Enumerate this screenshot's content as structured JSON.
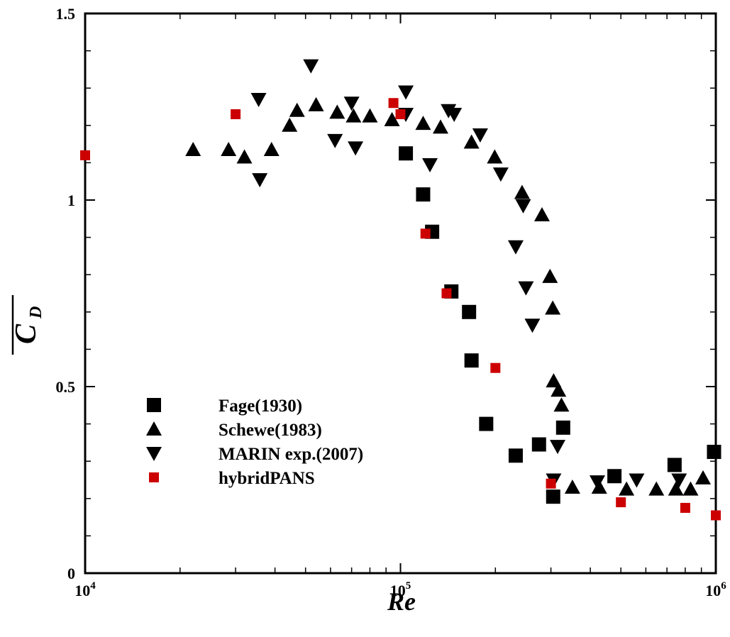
{
  "chart_data": {
    "type": "scatter",
    "title": "",
    "xlabel": "Re",
    "ylabel": "C_D (mean)",
    "ylabel_symbol": "C",
    "ylabel_subscript": "D",
    "xscale": "log",
    "xlim": [
      10000,
      1000000
    ],
    "ylim": [
      0,
      1.5
    ],
    "grid": false,
    "legend_position": "lower-left",
    "x_ticks": [
      {
        "value": 10000,
        "base": "10",
        "exp": "4"
      },
      {
        "value": 100000,
        "base": "10",
        "exp": "5"
      },
      {
        "value": 1000000,
        "base": "10",
        "exp": "6"
      }
    ],
    "y_ticks": [
      {
        "value": 0,
        "label": "0"
      },
      {
        "value": 0.5,
        "label": "0.5"
      },
      {
        "value": 1,
        "label": "1"
      },
      {
        "value": 1.5,
        "label": "1.5"
      }
    ],
    "series": [
      {
        "name": "Fage(1930)",
        "marker": "square",
        "color": "#000000",
        "points": [
          [
            104000,
            1.125
          ],
          [
            118000,
            1.015
          ],
          [
            126000,
            0.915
          ],
          [
            145000,
            0.755
          ],
          [
            165000,
            0.7
          ],
          [
            168000,
            0.57
          ],
          [
            187000,
            0.4
          ],
          [
            232000,
            0.315
          ],
          [
            275000,
            0.345
          ],
          [
            305000,
            0.205
          ],
          [
            328000,
            0.39
          ],
          [
            477000,
            0.26
          ],
          [
            740000,
            0.29
          ],
          [
            987000,
            0.325
          ]
        ]
      },
      {
        "name": "Schewe(1983)",
        "marker": "triangle-up",
        "color": "#000000",
        "points": [
          [
            22000,
            1.135
          ],
          [
            28500,
            1.135
          ],
          [
            32000,
            1.115
          ],
          [
            39000,
            1.135
          ],
          [
            44500,
            1.2
          ],
          [
            47000,
            1.24
          ],
          [
            54000,
            1.255
          ],
          [
            63000,
            1.235
          ],
          [
            71000,
            1.225
          ],
          [
            80000,
            1.225
          ],
          [
            94000,
            1.215
          ],
          [
            118000,
            1.205
          ],
          [
            134000,
            1.195
          ],
          [
            168000,
            1.155
          ],
          [
            199000,
            1.115
          ],
          [
            243000,
            1.02
          ],
          [
            281000,
            0.96
          ],
          [
            298000,
            0.795
          ],
          [
            304000,
            0.71
          ],
          [
            306000,
            0.515
          ],
          [
            317000,
            0.49
          ],
          [
            324000,
            0.45
          ],
          [
            351000,
            0.23
          ],
          [
            427000,
            0.23
          ],
          [
            521000,
            0.225
          ],
          [
            648000,
            0.225
          ],
          [
            747000,
            0.225
          ],
          [
            832000,
            0.225
          ],
          [
            911000,
            0.255
          ]
        ]
      },
      {
        "name": "MARIN exp.(2007)",
        "marker": "triangle-down",
        "color": "#000000",
        "points": [
          [
            35500,
            1.27
          ],
          [
            35800,
            1.055
          ],
          [
            52000,
            1.36
          ],
          [
            62000,
            1.16
          ],
          [
            70000,
            1.26
          ],
          [
            72000,
            1.14
          ],
          [
            104000,
            1.29
          ],
          [
            104000,
            1.23
          ],
          [
            124000,
            1.095
          ],
          [
            142000,
            1.24
          ],
          [
            148000,
            1.23
          ],
          [
            179000,
            1.175
          ],
          [
            208000,
            1.07
          ],
          [
            232000,
            0.875
          ],
          [
            245000,
            0.985
          ],
          [
            250000,
            0.765
          ],
          [
            262000,
            0.665
          ],
          [
            306000,
            0.25
          ],
          [
            315000,
            0.34
          ],
          [
            421000,
            0.245
          ],
          [
            561000,
            0.25
          ],
          [
            765000,
            0.25
          ]
        ]
      },
      {
        "name": "hybridPANS",
        "marker": "square-small",
        "color": "#cc0000",
        "points": [
          [
            10000,
            1.12
          ],
          [
            30000,
            1.23
          ],
          [
            95000,
            1.26
          ],
          [
            100000,
            1.23
          ],
          [
            120000,
            0.91
          ],
          [
            140000,
            0.75
          ],
          [
            200000,
            0.55
          ],
          [
            300000,
            0.24
          ],
          [
            500000,
            0.19
          ],
          [
            800000,
            0.175
          ],
          [
            1000000,
            0.155
          ]
        ]
      }
    ]
  }
}
